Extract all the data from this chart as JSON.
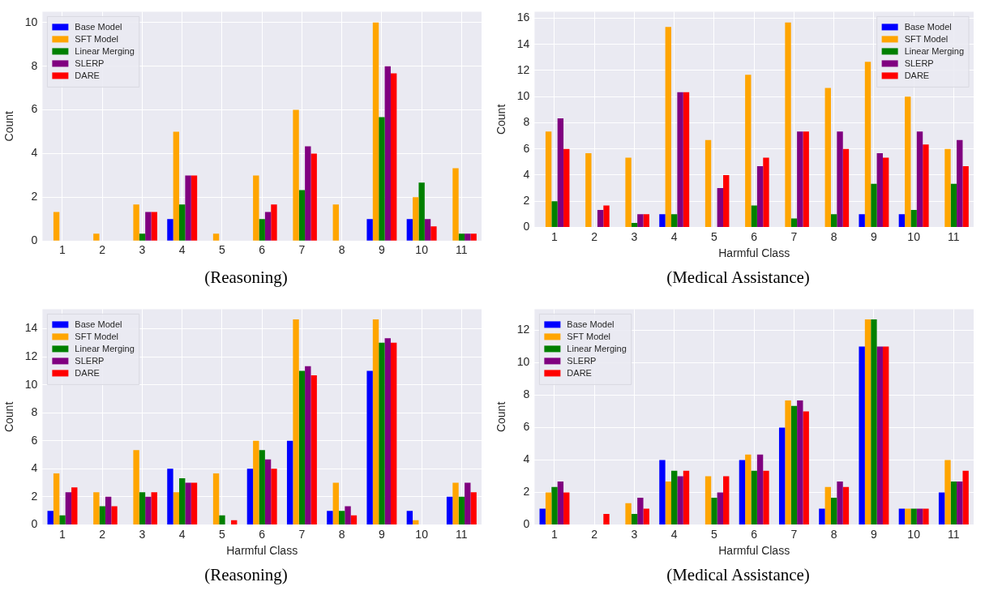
{
  "chart_data": [
    {
      "type": "bar",
      "title": "(Reasoning)",
      "ylabel": "Count",
      "categories": [
        "1",
        "2",
        "3",
        "4",
        "5",
        "6",
        "7",
        "8",
        "9",
        "10",
        "11"
      ],
      "ylim": [
        0,
        10.5
      ],
      "yticks": [
        0,
        2,
        4,
        6,
        8,
        10
      ],
      "grid": true,
      "legend": "top left",
      "series": [
        {
          "name": "Base Model",
          "color": "#0000ff",
          "values": [
            0,
            0,
            0,
            1,
            0,
            0,
            0,
            0,
            1,
            1,
            0
          ]
        },
        {
          "name": "SFT Model",
          "color": "#ffa500",
          "values": [
            1.33,
            0.33,
            1.67,
            5,
            0.33,
            3,
            6,
            1.67,
            10,
            2,
            3.33
          ]
        },
        {
          "name": "Linear Merging",
          "color": "#008000",
          "values": [
            0,
            0,
            0.33,
            1.67,
            0,
            1,
            2.33,
            0,
            5.67,
            2.67,
            0.33
          ]
        },
        {
          "name": "SLERP",
          "color": "#800080",
          "values": [
            0,
            0,
            1.33,
            3,
            0,
            1.33,
            4.33,
            0,
            8,
            1,
            0.33
          ]
        },
        {
          "name": "DARE",
          "color": "#ff0000",
          "values": [
            0,
            0,
            1.33,
            3,
            0,
            1.67,
            4,
            0,
            7.67,
            0.67,
            0.33
          ]
        }
      ]
    },
    {
      "type": "bar",
      "title": "(Medical Assistance)",
      "xlabel": "Harmful Class",
      "ylabel": "Count",
      "categories": [
        "1",
        "2",
        "3",
        "4",
        "5",
        "6",
        "7",
        "8",
        "9",
        "10",
        "11"
      ],
      "ylim": [
        0,
        16.5
      ],
      "yticks": [
        0,
        2,
        4,
        6,
        8,
        10,
        12,
        14,
        16
      ],
      "grid": true,
      "legend": "top right",
      "series": [
        {
          "name": "Base Model",
          "color": "#0000ff",
          "values": [
            0,
            0,
            0,
            1,
            0,
            0,
            0,
            0,
            1,
            1,
            0
          ]
        },
        {
          "name": "SFT Model",
          "color": "#ffa500",
          "values": [
            7.33,
            5.67,
            5.33,
            15.33,
            6.67,
            11.67,
            15.67,
            10.67,
            12.67,
            10,
            6
          ]
        },
        {
          "name": "Linear Merging",
          "color": "#008000",
          "values": [
            2,
            0,
            0.33,
            1,
            0,
            1.67,
            0.67,
            1,
            3.33,
            1.33,
            3.33
          ]
        },
        {
          "name": "SLERP",
          "color": "#800080",
          "values": [
            8.33,
            1.33,
            1,
            10.33,
            3,
            4.67,
            7.33,
            7.33,
            5.67,
            7.33,
            6.67
          ]
        },
        {
          "name": "DARE",
          "color": "#ff0000",
          "values": [
            6,
            1.67,
            1,
            10.33,
            4,
            5.33,
            7.33,
            6,
            5.33,
            6.33,
            4.67
          ]
        }
      ]
    },
    {
      "type": "bar",
      "title": "(Reasoning)",
      "xlabel": "Harmful Class",
      "ylabel": "Count",
      "categories": [
        "1",
        "2",
        "3",
        "4",
        "5",
        "6",
        "7",
        "8",
        "9",
        "10",
        "11"
      ],
      "ylim": [
        0,
        15.4
      ],
      "yticks": [
        0,
        2,
        4,
        6,
        8,
        10,
        12,
        14
      ],
      "grid": true,
      "legend": "top left",
      "series": [
        {
          "name": "Base Model",
          "color": "#0000ff",
          "values": [
            1,
            0,
            0,
            4,
            0,
            4,
            6,
            1,
            11,
            1,
            2
          ]
        },
        {
          "name": "SFT Model",
          "color": "#ffa500",
          "values": [
            3.67,
            2.33,
            5.33,
            2.33,
            3.67,
            6,
            14.67,
            3,
            14.67,
            0.33,
            3
          ]
        },
        {
          "name": "Linear Merging",
          "color": "#008000",
          "values": [
            0.67,
            1.33,
            2.33,
            3.33,
            0.67,
            5.33,
            11,
            1,
            13,
            0,
            2
          ]
        },
        {
          "name": "SLERP",
          "color": "#800080",
          "values": [
            2.33,
            2,
            2,
            3,
            0,
            4.67,
            11.33,
            1.33,
            13.33,
            0,
            3
          ]
        },
        {
          "name": "DARE",
          "color": "#ff0000",
          "values": [
            2.67,
            1.33,
            2.33,
            3,
            0.33,
            4,
            10.67,
            0.67,
            13,
            0,
            2.33
          ]
        }
      ]
    },
    {
      "type": "bar",
      "title": "(Medical Assistance)",
      "xlabel": "Harmful Class",
      "ylabel": "Count",
      "categories": [
        "1",
        "2",
        "3",
        "4",
        "5",
        "6",
        "7",
        "8",
        "9",
        "10",
        "11"
      ],
      "ylim": [
        0,
        13.3
      ],
      "yticks": [
        0,
        2,
        4,
        6,
        8,
        10,
        12
      ],
      "grid": true,
      "legend": "top left",
      "series": [
        {
          "name": "Base Model",
          "color": "#0000ff",
          "values": [
            1,
            0,
            0,
            4,
            0,
            4,
            6,
            1,
            11,
            1,
            2
          ]
        },
        {
          "name": "SFT Model",
          "color": "#ffa500",
          "values": [
            2,
            0,
            1.33,
            2.67,
            3,
            4.33,
            7.67,
            2.33,
            12.67,
            1,
            4
          ]
        },
        {
          "name": "Linear Merging",
          "color": "#008000",
          "values": [
            2.33,
            0,
            0.67,
            3.33,
            1.67,
            3.33,
            7.33,
            1.67,
            12.67,
            1,
            2.67
          ]
        },
        {
          "name": "SLERP",
          "color": "#800080",
          "values": [
            2.67,
            0,
            1.67,
            3,
            2,
            4.33,
            7.67,
            2.67,
            11,
            1,
            2.67
          ]
        },
        {
          "name": "DARE",
          "color": "#ff0000",
          "values": [
            2,
            0.67,
            1,
            3.33,
            3,
            3.33,
            7,
            2.33,
            11,
            1,
            3.33
          ]
        }
      ]
    }
  ]
}
